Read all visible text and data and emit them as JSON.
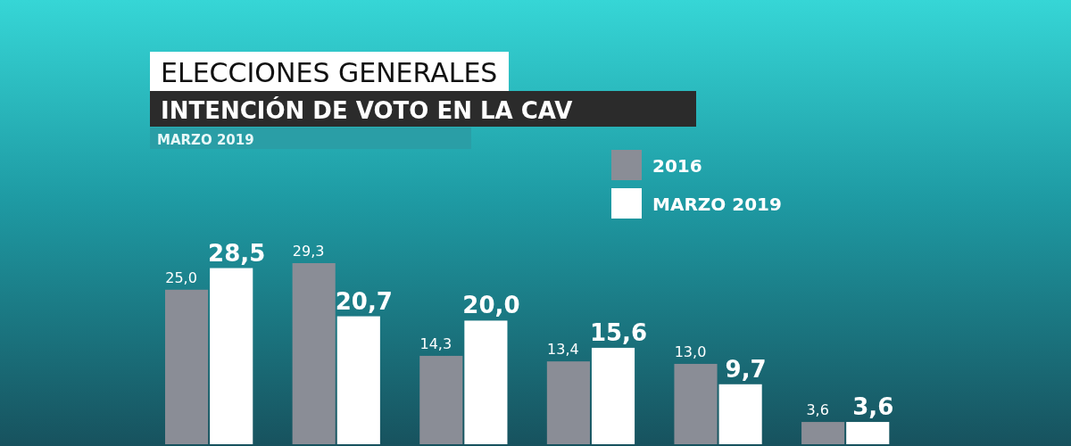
{
  "chart_data": {
    "type": "bar",
    "title": "ELECCIONES GENERALES",
    "subtitle": "INTENCIÓN DE VOTO EN LA CAV",
    "annotations": [
      "MARZO 2019"
    ],
    "categories": [
      null,
      null,
      null,
      null,
      null,
      null
    ],
    "series": [
      {
        "name": "2016",
        "color": "#8a8d96",
        "values": [
          25.0,
          29.3,
          14.3,
          13.4,
          13.0,
          3.6
        ],
        "value_labels": [
          "25,0",
          "29,3",
          "14,3",
          "13,4",
          "13,0",
          "3,6"
        ]
      },
      {
        "name": "MARZO 2019",
        "color": "#ffffff",
        "values": [
          28.5,
          20.7,
          20.0,
          15.6,
          9.7,
          3.6
        ],
        "value_labels": [
          "28,5",
          "20,7",
          "20,0",
          "15,6",
          "9,7",
          "3,6"
        ]
      }
    ],
    "legend": "top right"
  }
}
